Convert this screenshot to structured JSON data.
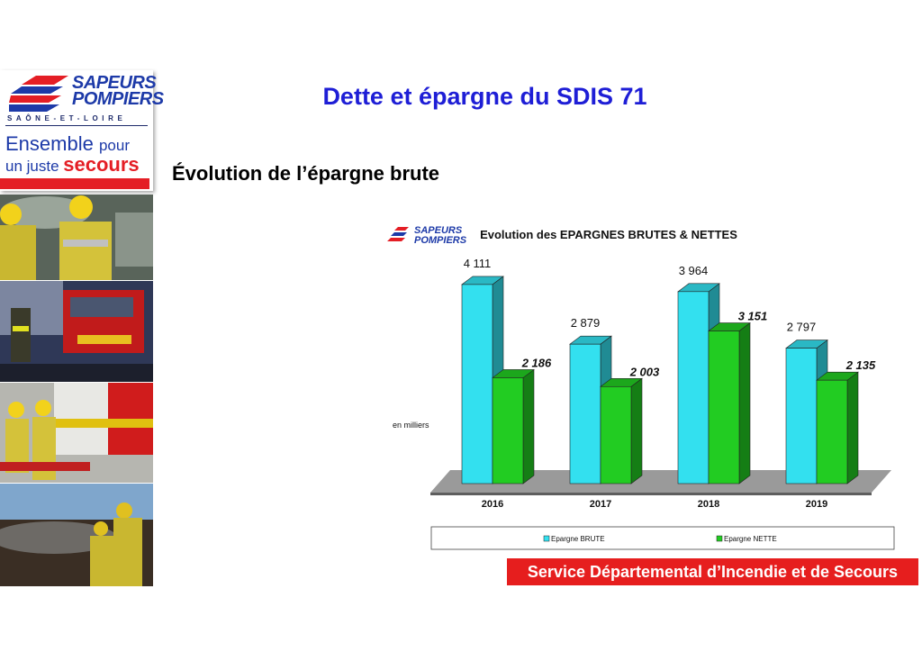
{
  "sidebar": {
    "logo": {
      "word1": "SAPEURS",
      "word2": "POMPIERS",
      "region": "SAÔNE-ET-LOIRE",
      "slogan_part1": "Ensemble",
      "slogan_part2": "pour",
      "slogan_part3": "un juste",
      "slogan_part4": "secours"
    },
    "colors": {
      "brand_blue": "#1d3aa8",
      "brand_red": "#e41e25"
    }
  },
  "title": "Dette et épargne du SDIS 71",
  "subtitle": "Évolution de l’épargne brute",
  "footer": "Service Départemental d’Incendie et de Secours",
  "chart_data": {
    "type": "bar",
    "title": "Evolution des EPARGNES BRUTES & NETTES",
    "ylabel": "en milliers",
    "categories": [
      "2016",
      "2017",
      "2018",
      "2019"
    ],
    "series": [
      {
        "name": "Epargne BRUTE",
        "values": [
          4111,
          2879,
          3964,
          2797
        ],
        "labels": [
          "4 111",
          "2 879",
          "3 964",
          "2 797"
        ],
        "color": "#33e0ef",
        "label_style": "normal"
      },
      {
        "name": "Epargne NETTE",
        "values": [
          2186,
          2003,
          3151,
          2135
        ],
        "labels": [
          "2 186",
          "2 003",
          "3 151",
          "2 135"
        ],
        "color": "#22cc22",
        "label_style": "bold-italic"
      }
    ],
    "ylim": [
      0,
      4500
    ],
    "three_d": true,
    "grid": false,
    "legend_position": "bottom",
    "logo_text": [
      "SAPEURS",
      "POMPIERS"
    ]
  }
}
